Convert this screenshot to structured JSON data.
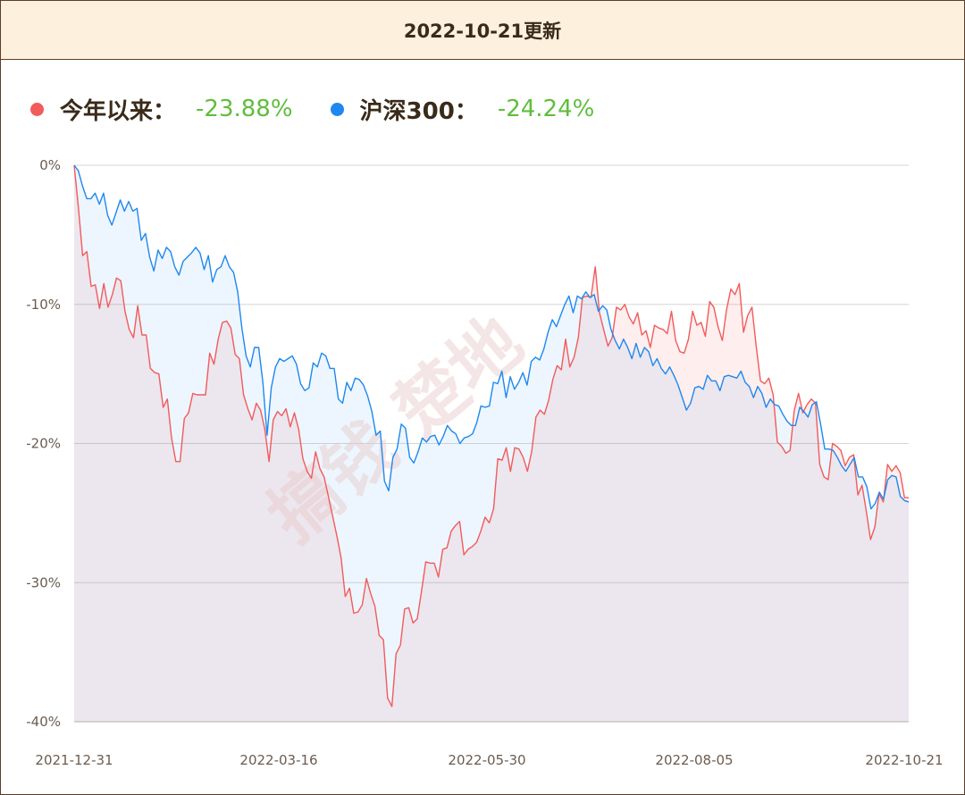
{
  "header": {
    "title": "2022-10-21更新"
  },
  "legend": [
    {
      "label": "今年以来：",
      "value": "-23.88%",
      "color": "#f25b5b"
    },
    {
      "label": "沪深300：",
      "value": "-24.24%",
      "color": "#1e88f0"
    }
  ],
  "watermark": "搞钱 楚地",
  "chart_data": {
    "type": "line",
    "x_ticks": [
      "2021-12-31",
      "2022-03-16",
      "2022-05-30",
      "2022-08-05",
      "2022-10-21"
    ],
    "y_ticks": [
      "0%",
      "-10%",
      "-20%",
      "-30%",
      "-40%"
    ],
    "ylim": [
      -40,
      0
    ],
    "series": [
      {
        "name": "今年以来",
        "color": "#f25b5b",
        "values": [
          0,
          -3,
          -6.5,
          -6.2,
          -8.7,
          -8.6,
          -10.3,
          -8.5,
          -10.2,
          -9.3,
          -8.1,
          -8.3,
          -10.5,
          -11.8,
          -12.4,
          -10.1,
          -12.2,
          -12.2,
          -14.6,
          -14.9,
          -15.0,
          -17.4,
          -16.8,
          -19.6,
          -21.3,
          -21.3,
          -18.2,
          -17.8,
          -16.4,
          -16.5,
          -16.5,
          -16.5,
          -13.5,
          -14.3,
          -12.5,
          -11.3,
          -11.2,
          -11.7,
          -13.6,
          -13.9,
          -16.5,
          -17.5,
          -18.3,
          -17.1,
          -17.6,
          -19.0,
          -21.3,
          -18.3,
          -17.7,
          -18.0,
          -17.5,
          -18.8,
          -17.8,
          -19.0,
          -21.1,
          -22.0,
          -22.5,
          -20.6,
          -21.8,
          -22.4,
          -23.8,
          -25.2,
          -26.6,
          -28.2,
          -31.0,
          -30.4,
          -32.2,
          -32.1,
          -31.6,
          -29.7,
          -30.8,
          -31.7,
          -33.8,
          -34.1,
          -38.3,
          -38.9,
          -35.1,
          -34.5,
          -31.9,
          -31.8,
          -32.9,
          -32.6,
          -30.6,
          -28.5,
          -28.6,
          -28.6,
          -29.6,
          -27.6,
          -27.5,
          -26.3,
          -25.9,
          -25.6,
          -28.0,
          -27.6,
          -27.4,
          -27.1,
          -26.3,
          -25.3,
          -25.7,
          -24.7,
          -21.1,
          -21.2,
          -20.3,
          -22.0,
          -20.3,
          -20.4,
          -21.0,
          -22.0,
          -20.6,
          -18.1,
          -17.6,
          -17.9,
          -16.9,
          -15.4,
          -14.4,
          -14.7,
          -12.5,
          -14.5,
          -13.8,
          -12.4,
          -9.5,
          -9.4,
          -9.5,
          -7.3,
          -10.6,
          -11.8,
          -13.0,
          -12.4,
          -10.2,
          -10.4,
          -10.0,
          -10.9,
          -11.4,
          -10.6,
          -12.2,
          -11.9,
          -13.1,
          -11.5,
          -11.7,
          -11.8,
          -12.1,
          -10.5,
          -12.6,
          -13.4,
          -13.5,
          -12.5,
          -10.5,
          -11.5,
          -11.3,
          -12.3,
          -9.8,
          -10.2,
          -11.6,
          -12.6,
          -10.4,
          -8.9,
          -9.3,
          -8.5,
          -12.0,
          -10.8,
          -10.2,
          -13.0,
          -15.5,
          -15.7,
          -15.3,
          -16.5,
          -19.9,
          -20.2,
          -20.7,
          -20.5,
          -17.6,
          -16.4,
          -17.8,
          -17.2,
          -16.8,
          -17.1,
          -21.5,
          -22.4,
          -22.6,
          -20.0,
          -20.2,
          -20.5,
          -21.6,
          -21.0,
          -20.8,
          -23.7,
          -23.0,
          -24.9,
          -26.9,
          -26.0,
          -23.6,
          -24.2,
          -21.5,
          -22.0,
          -21.6,
          -22.1,
          -23.9,
          -23.9
        ]
      },
      {
        "name": "沪深300",
        "color": "#1e88f0",
        "values": [
          0,
          -0.4,
          -1.5,
          -2.4,
          -2.4,
          -2.0,
          -2.8,
          -2.0,
          -3.6,
          -4.3,
          -3.4,
          -2.5,
          -3.3,
          -2.6,
          -3.3,
          -3.1,
          -5.4,
          -4.9,
          -6.6,
          -7.6,
          -6.1,
          -6.7,
          -5.9,
          -6.2,
          -7.3,
          -7.9,
          -6.9,
          -6.6,
          -6.3,
          -5.9,
          -6.3,
          -7.5,
          -6.5,
          -8.4,
          -7.5,
          -7.3,
          -6.5,
          -7.3,
          -7.7,
          -9.1,
          -11.7,
          -13.7,
          -14.5,
          -13.1,
          -13.1,
          -15.6,
          -19.4,
          -16.0,
          -14.5,
          -13.9,
          -14.1,
          -13.9,
          -13.7,
          -14.3,
          -15.7,
          -16.2,
          -16.0,
          -14.2,
          -14.5,
          -13.5,
          -13.7,
          -14.6,
          -14.6,
          -16.8,
          -17.1,
          -15.6,
          -16.2,
          -15.3,
          -15.4,
          -15.8,
          -16.6,
          -17.7,
          -19.4,
          -19.1,
          -22.7,
          -23.4,
          -21.0,
          -20.4,
          -18.6,
          -18.9,
          -21.0,
          -21.4,
          -20.6,
          -19.6,
          -19.9,
          -19.5,
          -19.4,
          -20.1,
          -19.5,
          -18.7,
          -19.1,
          -19.3,
          -20.0,
          -19.6,
          -19.5,
          -19.3,
          -18.5,
          -17.3,
          -17.4,
          -17.3,
          -15.6,
          -15.7,
          -14.8,
          -16.7,
          -15.2,
          -16.1,
          -15.6,
          -14.9,
          -15.8,
          -14.1,
          -13.8,
          -14.0,
          -13.2,
          -12.0,
          -11.1,
          -11.6,
          -10.8,
          -10.0,
          -9.4,
          -10.6,
          -9.4,
          -9.6,
          -9.1,
          -9.5,
          -9.3,
          -10.5,
          -10.1,
          -10.4,
          -11.8,
          -12.6,
          -13.2,
          -12.5,
          -13.1,
          -13.9,
          -12.8,
          -13.8,
          -13.1,
          -13.4,
          -14.4,
          -13.9,
          -14.6,
          -15.0,
          -14.5,
          -15.1,
          -15.8,
          -16.7,
          -17.6,
          -17.1,
          -16.0,
          -15.9,
          -16.1,
          -15.1,
          -15.5,
          -15.5,
          -16.2,
          -15.2,
          -15.1,
          -15.2,
          -15.3,
          -14.8,
          -15.6,
          -15.9,
          -16.7,
          -15.9,
          -16.4,
          -17.4,
          -16.8,
          -17.2,
          -17.3,
          -17.9,
          -18.4,
          -18.7,
          -18.7,
          -17.4,
          -17.7,
          -18.1,
          -17.2,
          -17.0,
          -18.6,
          -20.4,
          -20.4,
          -20.5,
          -21.0,
          -21.6,
          -22.0,
          -21.5,
          -21.0,
          -22.4,
          -22.4,
          -23.1,
          -24.7,
          -24.3,
          -23.5,
          -24.0,
          -22.6,
          -22.3,
          -22.4,
          -23.8,
          -24.1,
          -24.2
        ]
      }
    ]
  }
}
